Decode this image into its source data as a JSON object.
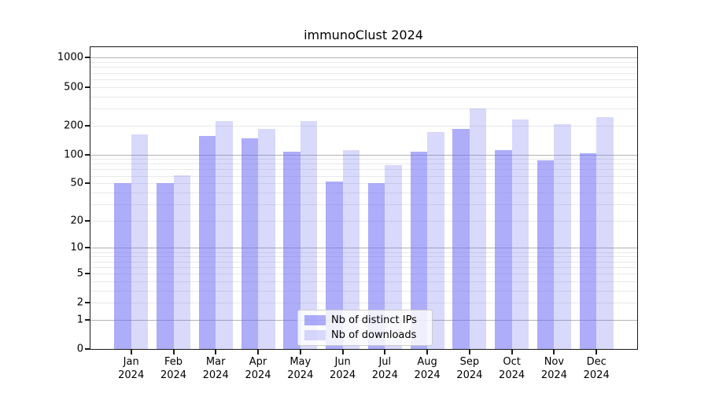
{
  "chart_data": {
    "type": "bar",
    "title": "immunoClust 2024",
    "categories": [
      "Jan 2024",
      "Feb 2024",
      "Mar 2024",
      "Apr 2024",
      "May 2024",
      "Jun 2024",
      "Jul 2024",
      "Aug 2024",
      "Sep 2024",
      "Oct 2024",
      "Nov 2024",
      "Dec 2024"
    ],
    "series": [
      {
        "key": "ips",
        "name": "Nb of distinct IPs",
        "color": "rgba(105,105,245,0.55)",
        "values": [
          50,
          50,
          157,
          147,
          107,
          52,
          50,
          107,
          184,
          110,
          87,
          103
        ]
      },
      {
        "key": "downloads",
        "name": "Nb of downloads",
        "color": "rgba(105,105,245,0.25)",
        "values": [
          162,
          61,
          221,
          184,
          223,
          111,
          77,
          172,
          298,
          232,
          207,
          242
        ]
      }
    ],
    "y_axis": {
      "scale": "log10(value+1)",
      "tick_values": [
        0,
        1,
        2,
        5,
        10,
        20,
        50,
        100,
        200,
        500,
        1000
      ],
      "tick_labels": [
        "0",
        "1",
        "2",
        "5",
        "10",
        "20",
        "50",
        "100",
        "200",
        "500",
        "1000"
      ],
      "major_gridlines": [
        1,
        10,
        100,
        1000
      ],
      "minor_gridline_mantissas": [
        2,
        3,
        4,
        5,
        6,
        7,
        8,
        9
      ],
      "ylim": [
        0,
        1300
      ]
    },
    "grid": true,
    "legend_position": "lower center",
    "colors": {
      "bar_base": "#6969f5",
      "grid_major": "#b3b3b3",
      "grid_minor": "#e9e9e9",
      "axis": "#1a1a1a",
      "text": "#000000",
      "legend_border": "#cccccc",
      "legend_background": "rgba(255,255,255,0.8)"
    }
  }
}
